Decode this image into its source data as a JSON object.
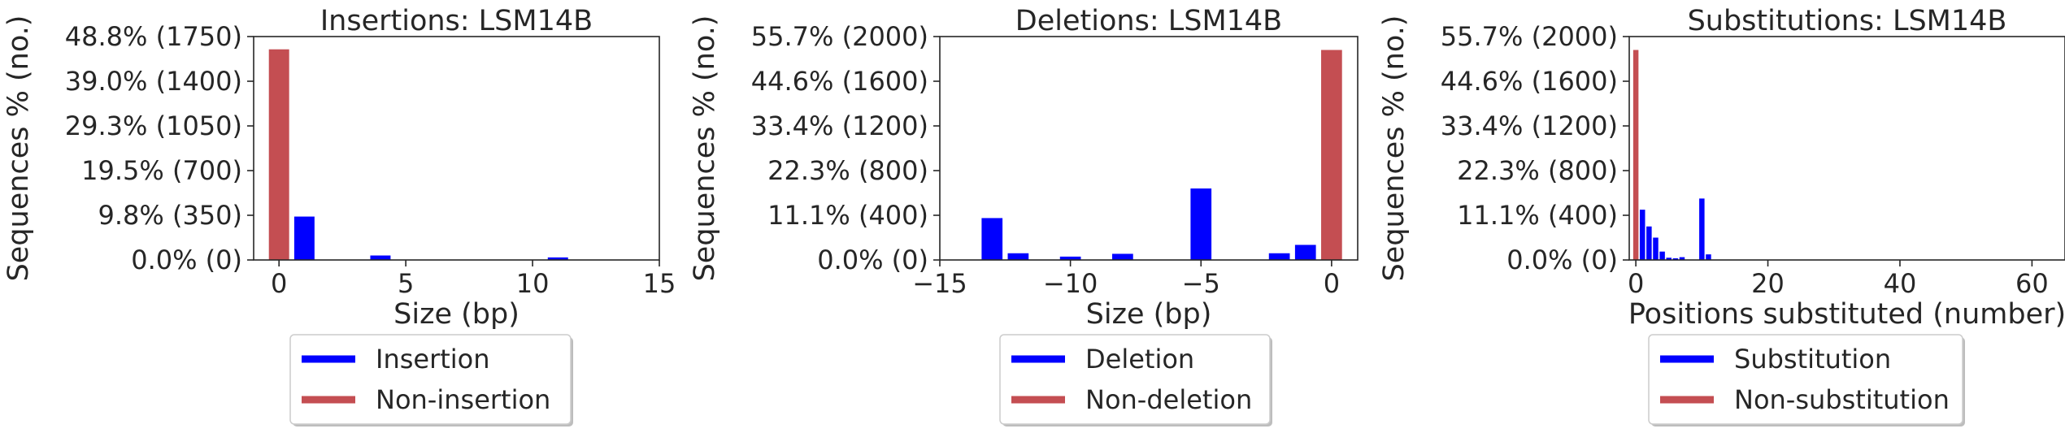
{
  "chart_data": [
    {
      "type": "bar",
      "title": "Insertions: LSM14B",
      "xlabel": "Size (bp)",
      "ylabel": "Sequences % (no.)",
      "xlim": [
        -1,
        15
      ],
      "ylim": [
        0,
        1750
      ],
      "xticks": [
        0,
        5,
        10,
        15
      ],
      "xtick_labels": [
        "0",
        "5",
        "10",
        "15"
      ],
      "yticks": [
        0,
        350,
        700,
        1050,
        1400,
        1750
      ],
      "ytick_labels": [
        "0.0% (0)",
        "9.8% (350)",
        "19.5% (700)",
        "29.3% (1050)",
        "39.0% (1400)",
        "48.8% (1750)"
      ],
      "series": [
        {
          "name": "Insertion",
          "color": "#0000ff",
          "x": [
            1,
            4,
            11
          ],
          "values": [
            340,
            35,
            20
          ]
        },
        {
          "name": "Non-insertion",
          "color": "#c44e52",
          "x": [
            0
          ],
          "values": [
            1650
          ]
        }
      ],
      "legend_position": "below"
    },
    {
      "type": "bar",
      "title": "Deletions: LSM14B",
      "xlabel": "Size (bp)",
      "ylabel": "Sequences % (no.)",
      "xlim": [
        -15,
        1
      ],
      "ylim": [
        0,
        2000
      ],
      "xticks": [
        -15,
        -10,
        -5,
        0
      ],
      "xtick_labels": [
        "−15",
        "−10",
        "−5",
        "0"
      ],
      "yticks": [
        0,
        400,
        800,
        1200,
        1600,
        2000
      ],
      "ytick_labels": [
        "0.0% (0)",
        "11.1% (400)",
        "22.3% (800)",
        "33.4% (1200)",
        "44.6% (1600)",
        "55.7% (2000)"
      ],
      "series": [
        {
          "name": "Deletion",
          "color": "#0000ff",
          "x": [
            -13,
            -12,
            -10,
            -8,
            -5,
            -2,
            -1
          ],
          "values": [
            375,
            60,
            30,
            55,
            640,
            60,
            135
          ]
        },
        {
          "name": "Non-deletion",
          "color": "#c44e52",
          "x": [
            0
          ],
          "values": [
            1880
          ]
        }
      ],
      "legend_position": "below"
    },
    {
      "type": "bar",
      "title": "Substitutions: LSM14B",
      "xlabel": "Positions substituted (number)",
      "ylabel": "Sequences % (no.)",
      "xlim": [
        -1,
        65
      ],
      "ylim": [
        0,
        2000
      ],
      "xticks": [
        0,
        20,
        40,
        60
      ],
      "xtick_labels": [
        "0",
        "20",
        "40",
        "60"
      ],
      "yticks": [
        0,
        400,
        800,
        1200,
        1600,
        2000
      ],
      "ytick_labels": [
        "0.0% (0)",
        "11.1% (400)",
        "22.3% (800)",
        "33.4% (1200)",
        "44.6% (1600)",
        "55.7% (2000)"
      ],
      "series": [
        {
          "name": "Substitution",
          "color": "#0000ff",
          "x": [
            1,
            2,
            3,
            4,
            5,
            6,
            7,
            10,
            11
          ],
          "values": [
            450,
            300,
            200,
            75,
            20,
            15,
            25,
            550,
            50
          ]
        },
        {
          "name": "Non-substitution",
          "color": "#c44e52",
          "x": [
            0
          ],
          "values": [
            1880
          ]
        }
      ],
      "legend_position": "below"
    }
  ]
}
